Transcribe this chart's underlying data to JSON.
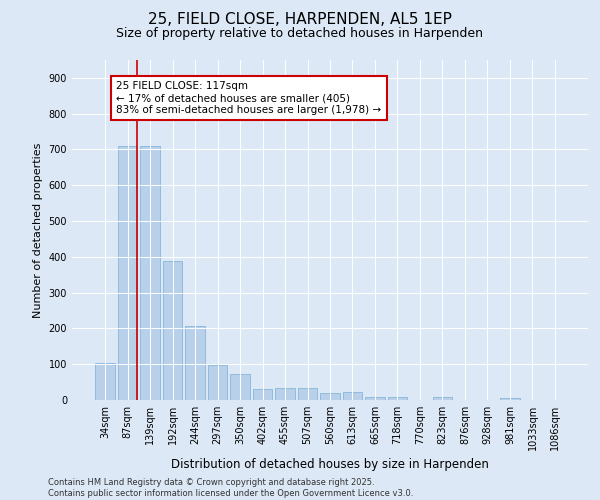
{
  "title": "25, FIELD CLOSE, HARPENDEN, AL5 1EP",
  "subtitle": "Size of property relative to detached houses in Harpenden",
  "xlabel": "Distribution of detached houses by size in Harpenden",
  "ylabel": "Number of detached properties",
  "categories": [
    "34sqm",
    "87sqm",
    "139sqm",
    "192sqm",
    "244sqm",
    "297sqm",
    "350sqm",
    "402sqm",
    "455sqm",
    "507sqm",
    "560sqm",
    "613sqm",
    "665sqm",
    "718sqm",
    "770sqm",
    "823sqm",
    "876sqm",
    "928sqm",
    "981sqm",
    "1033sqm",
    "1086sqm"
  ],
  "values": [
    103,
    710,
    710,
    388,
    208,
    98,
    72,
    30,
    33,
    33,
    20,
    22,
    8,
    8,
    0,
    8,
    0,
    0,
    5,
    0,
    0
  ],
  "bar_color": "#b8d0ea",
  "bar_edge_color": "#7aafd4",
  "vline_color": "#cc0000",
  "annotation_text": "25 FIELD CLOSE: 117sqm\n← 17% of detached houses are smaller (405)\n83% of semi-detached houses are larger (1,978) →",
  "annotation_box_color": "#ffffff",
  "annotation_box_edge": "#cc0000",
  "ylim": [
    0,
    950
  ],
  "yticks": [
    0,
    100,
    200,
    300,
    400,
    500,
    600,
    700,
    800,
    900
  ],
  "bg_color": "#dce8f5",
  "footer": "Contains HM Land Registry data © Crown copyright and database right 2025.\nContains public sector information licensed under the Open Government Licence v3.0.",
  "title_fontsize": 11,
  "subtitle_fontsize": 9,
  "xlabel_fontsize": 8.5,
  "ylabel_fontsize": 8,
  "tick_fontsize": 7,
  "annotation_fontsize": 7.5,
  "footer_fontsize": 6
}
